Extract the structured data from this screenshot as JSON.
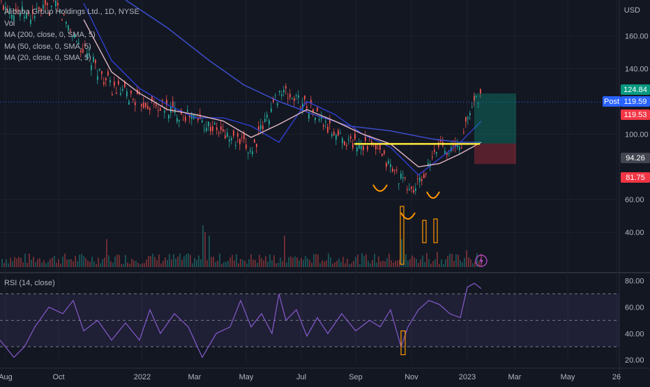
{
  "header": {
    "symbol_line": "Alibaba Group Holdings Ltd., 1D, NYSE",
    "indicators": [
      "Vol",
      "MA (200, close, 0, SMA, 5)",
      "MA (50, close, 0, SMA, 5)",
      "MA (20, close, 0, SMA, 5)"
    ],
    "rsi_label": "RSI (14, close)",
    "currency": "USD",
    "post_label": "Post"
  },
  "chart_data": [
    {
      "type": "line",
      "title": "Alibaba Group Holdings Ltd., 1D, NYSE",
      "ylabel": "USD",
      "ylim": [
        20,
        182
      ],
      "y_ticks": [
        "160.00",
        "140.00",
        "100.00",
        "60.00",
        "40.00"
      ],
      "y_tick_values": [
        160,
        140,
        100,
        60,
        40
      ],
      "x_ticks": [
        "Aug",
        "Oct",
        "2022",
        "Mar",
        "May",
        "Jul",
        "Sep",
        "Nov",
        "2023",
        "Mar",
        "May",
        "26"
      ],
      "price_x": [
        0,
        40,
        80,
        120,
        160,
        200,
        240,
        280,
        320,
        360,
        400,
        440,
        470,
        500,
        530,
        555,
        575,
        590,
        600,
        615,
        630,
        645,
        660,
        670,
        680,
        690
      ],
      "price": [
        180,
        172,
        178,
        150,
        128,
        120,
        115,
        110,
        100,
        90,
        126,
        118,
        103,
        95,
        94,
        82,
        72,
        65,
        70,
        80,
        95,
        90,
        93,
        110,
        122,
        125
      ],
      "series": [
        {
          "name": "MA (200, close, 0, SMA, 5)",
          "color": "#3f51d4",
          "x": [
            180,
            240,
            300,
            350,
            400,
            450,
            500,
            560,
            620,
            660,
            690
          ],
          "values": [
            182,
            165,
            145,
            130,
            120,
            112,
            105,
            102,
            97,
            95,
            95
          ]
        },
        {
          "name": "MA (50, close, 0, SMA, 5)",
          "color": "#2f3fd0",
          "x": [
            120,
            160,
            200,
            240,
            280,
            320,
            360,
            400,
            440,
            480,
            520,
            560,
            600,
            630,
            660,
            690
          ],
          "values": [
            180,
            145,
            128,
            118,
            110,
            110,
            105,
            95,
            120,
            112,
            100,
            92,
            75,
            85,
            95,
            108
          ]
        },
        {
          "name": "MA (20, close, 0, SMA, 5)",
          "color": "#e3b7c4",
          "x": [
            120,
            160,
            200,
            240,
            280,
            320,
            360,
            400,
            440,
            480,
            520,
            560,
            600,
            630,
            660,
            690
          ],
          "values": [
            170,
            138,
            125,
            115,
            112,
            108,
            98,
            106,
            115,
            108,
            100,
            94,
            80,
            82,
            88,
            95
          ]
        }
      ],
      "price_labels": [
        {
          "text": "124.84",
          "color": "#089981"
        },
        {
          "text": "119.59",
          "color": "#2962ff"
        },
        {
          "text": "119.53",
          "color": "#f23645"
        },
        {
          "text": "94.26",
          "color": "#434651"
        },
        {
          "text": "81.75",
          "color": "#f23645"
        }
      ],
      "position_box": {
        "entry": 94.26,
        "target": 124.84,
        "stop": 81.75
      },
      "current_price": 119.59,
      "neckline": {
        "value": 94,
        "from": "Sep",
        "to": "Dec"
      },
      "annotations": [
        "yellow neckline",
        "orange inverse head-and-shoulders arcs",
        "orange volume spike boxes",
        "lightning icon"
      ],
      "colors": {
        "background": "#131722",
        "up": "#26a69a",
        "down": "#ef5350",
        "neckline": "#ffeb3b",
        "annotation": "#ff9800"
      }
    },
    {
      "type": "line",
      "title": "RSI (14, close)",
      "ylim": [
        18,
        85
      ],
      "y_ticks": [
        "80.00",
        "60.00",
        "40.00",
        "20.00"
      ],
      "y_tick_values": [
        80,
        60,
        40,
        20
      ],
      "levels": [
        70,
        50,
        30
      ],
      "x": [
        0,
        20,
        35,
        50,
        70,
        90,
        105,
        120,
        140,
        160,
        180,
        200,
        215,
        230,
        250,
        270,
        290,
        310,
        330,
        345,
        360,
        375,
        390,
        400,
        410,
        425,
        440,
        455,
        470,
        490,
        510,
        530,
        545,
        560,
        575,
        585,
        600,
        615,
        630,
        645,
        660,
        670,
        680,
        690
      ],
      "values": [
        35,
        22,
        30,
        45,
        60,
        55,
        65,
        42,
        50,
        35,
        48,
        35,
        58,
        40,
        55,
        45,
        22,
        40,
        45,
        65,
        45,
        55,
        40,
        70,
        50,
        58,
        38,
        52,
        40,
        55,
        42,
        50,
        45,
        58,
        30,
        45,
        58,
        65,
        62,
        55,
        52,
        75,
        78,
        74
      ],
      "color": "#7e57c2"
    }
  ]
}
